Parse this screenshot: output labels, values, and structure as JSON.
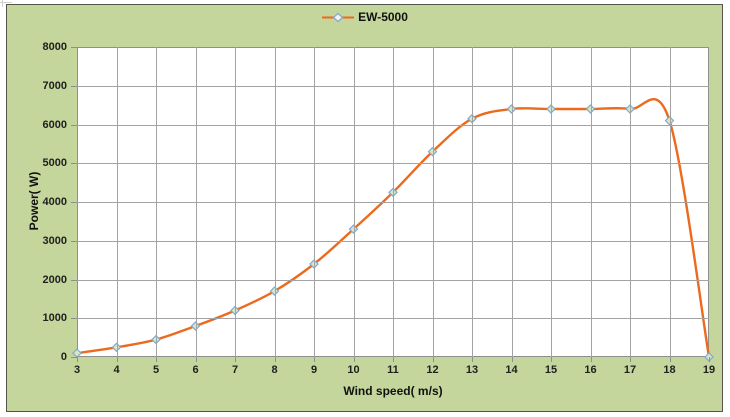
{
  "chart": {
    "legend": {
      "label": "EW-5000"
    },
    "x_axis": {
      "title": "Wind speed( m/s)"
    },
    "y_axis": {
      "title": "Power( W)"
    },
    "colors": {
      "chart_background": "#c4d69c",
      "plot_background": "#ffffff",
      "gridline": "#a3a3a3",
      "series_line": "#ec6a1d",
      "marker_fill": "#dae6c2",
      "marker_stroke": "#7fa8d2",
      "text": "#1f1f1f"
    }
  },
  "chart_data": {
    "type": "line",
    "title": "",
    "xlabel": "Wind speed( m/s)",
    "ylabel": "Power( W)",
    "x": [
      3,
      4,
      5,
      6,
      7,
      8,
      9,
      10,
      11,
      12,
      13,
      14,
      15,
      16,
      17,
      18,
      19
    ],
    "series": [
      {
        "name": "EW-5000",
        "values": [
          100,
          250,
          450,
          800,
          1200,
          1700,
          2400,
          3300,
          4250,
          5300,
          6150,
          6400,
          6400,
          6400,
          6400,
          6100,
          0
        ]
      }
    ],
    "x_ticks": [
      3,
      4,
      5,
      6,
      7,
      8,
      9,
      10,
      11,
      12,
      13,
      14,
      15,
      16,
      17,
      18,
      19
    ],
    "y_ticks": [
      0,
      1000,
      2000,
      3000,
      4000,
      5000,
      6000,
      7000,
      8000
    ],
    "xlim": [
      3,
      19
    ],
    "ylim": [
      0,
      8000
    ],
    "grid": true,
    "legend_position": "top",
    "marker": "diamond"
  }
}
